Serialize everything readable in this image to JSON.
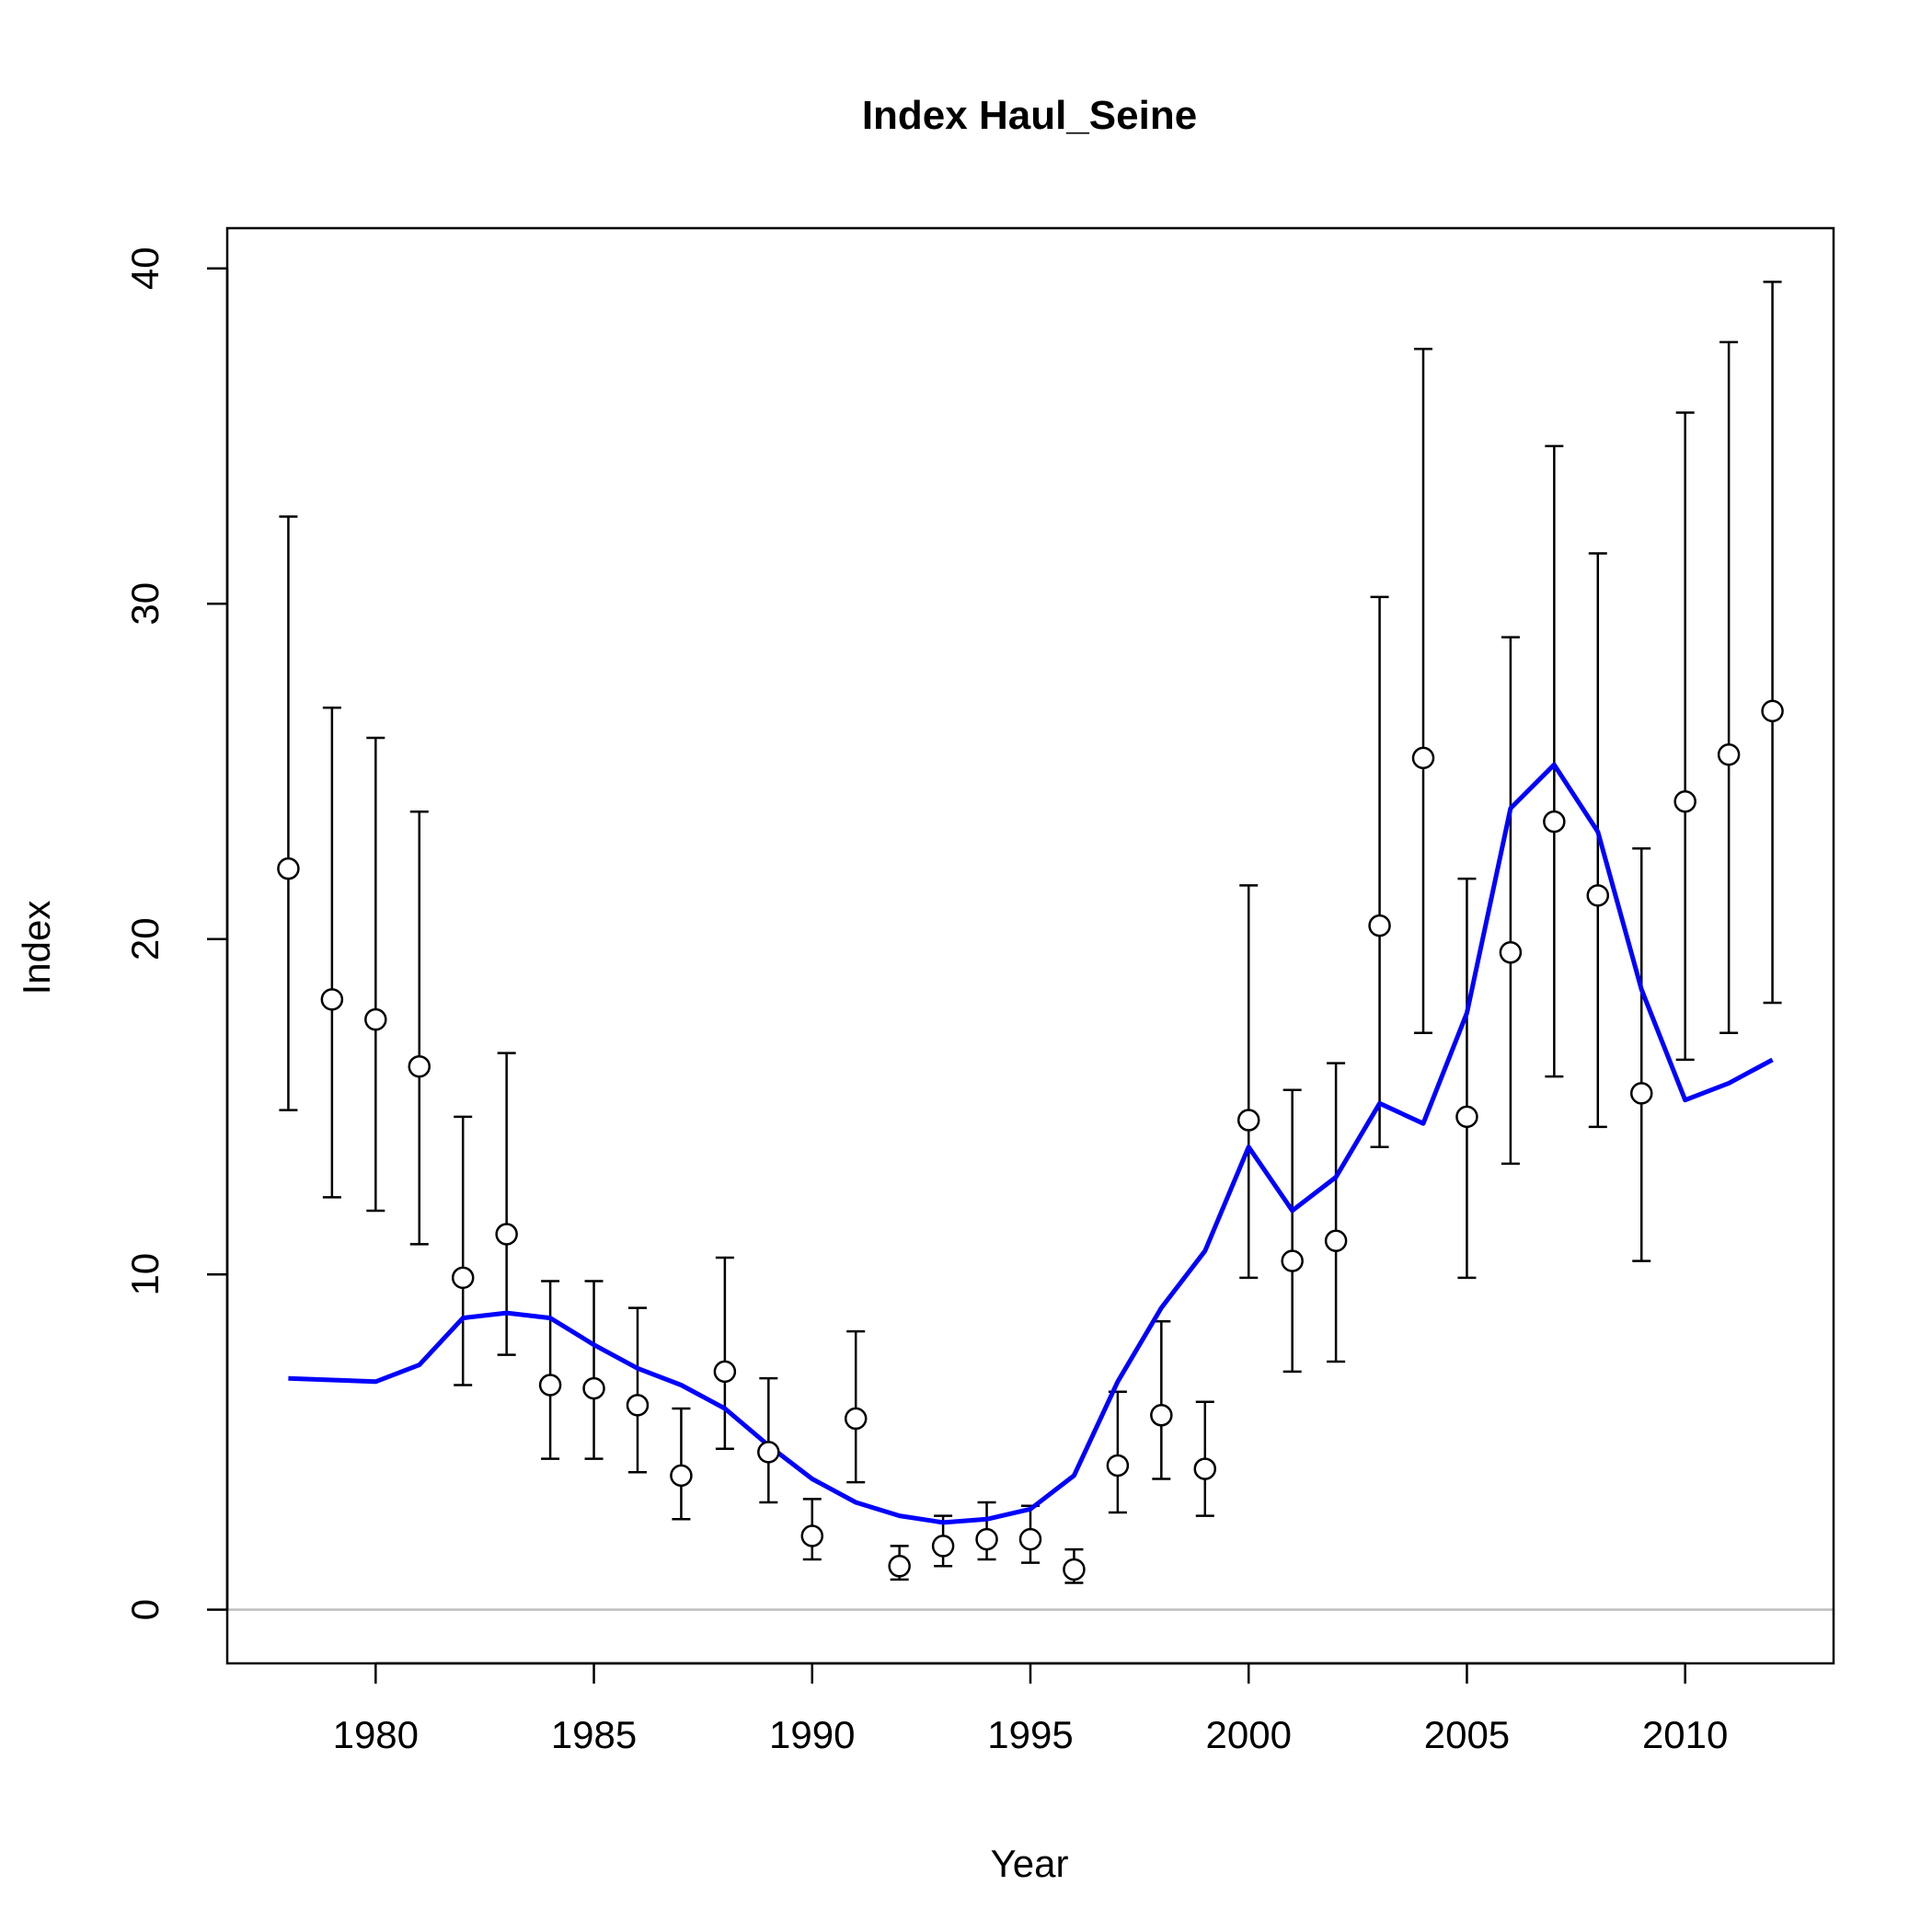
{
  "chart_data": {
    "type": "scatter",
    "title": "Index Haul_Seine",
    "xlabel": "Year",
    "ylabel": "Index",
    "xlim": [
      1976.6,
      2013.4
    ],
    "ylim": [
      -1.6,
      41.2
    ],
    "x_ticks": [
      1980,
      1985,
      1990,
      1995,
      2000,
      2005,
      2010
    ],
    "y_ticks": [
      0,
      10,
      20,
      30,
      40
    ],
    "reference_line_y": 0,
    "grid": false,
    "legend": "none",
    "colors": {
      "observed": "#000000",
      "fit": "#0000ff",
      "zero_line": "#bebebe"
    },
    "years": [
      1978,
      1979,
      1980,
      1981,
      1982,
      1983,
      1984,
      1985,
      1986,
      1987,
      1988,
      1989,
      1990,
      1991,
      1992,
      1993,
      1994,
      1995,
      1996,
      1997,
      1998,
      1999,
      2000,
      2001,
      2002,
      2003,
      2004,
      2005,
      2006,
      2007,
      2008,
      2009,
      2010,
      2011,
      2012
    ],
    "series": [
      {
        "kind": "observed",
        "values": [
          22.1,
          18.2,
          17.6,
          16.2,
          9.9,
          11.2,
          6.7,
          6.6,
          6.1,
          4.0,
          7.1,
          4.7,
          2.2,
          5.7,
          1.3,
          1.9,
          2.1,
          2.1,
          1.2,
          4.3,
          5.8,
          4.2,
          14.6,
          10.4,
          11.0,
          20.4,
          25.4,
          14.7,
          19.6,
          23.5,
          21.3,
          15.4,
          24.1,
          25.5,
          26.8
        ],
        "lower": [
          14.9,
          12.3,
          11.9,
          10.9,
          6.7,
          7.6,
          4.5,
          4.5,
          4.1,
          2.7,
          4.8,
          3.2,
          1.5,
          3.8,
          0.9,
          1.3,
          1.5,
          1.4,
          0.8,
          2.9,
          3.9,
          2.8,
          9.9,
          7.1,
          7.4,
          13.8,
          17.2,
          9.9,
          13.3,
          15.9,
          14.4,
          10.4,
          16.4,
          17.2,
          18.1
        ],
        "upper": [
          32.6,
          26.9,
          26.0,
          23.8,
          14.7,
          16.6,
          9.8,
          9.8,
          9.0,
          6.0,
          10.5,
          6.9,
          3.3,
          8.3,
          1.9,
          2.8,
          3.2,
          3.1,
          1.8,
          6.5,
          8.6,
          6.2,
          21.6,
          15.5,
          16.3,
          30.2,
          37.6,
          21.8,
          29.0,
          34.7,
          31.5,
          22.7,
          35.7,
          37.8,
          39.6
        ]
      },
      {
        "kind": "fit",
        "values": [
          6.9,
          6.85,
          6.8,
          7.3,
          8.7,
          8.85,
          8.7,
          7.9,
          7.2,
          6.7,
          6.0,
          4.9,
          3.9,
          3.2,
          2.8,
          2.6,
          2.7,
          3.0,
          4.0,
          6.8,
          9.0,
          10.7,
          13.8,
          11.9,
          12.9,
          15.1,
          14.5,
          17.8,
          23.9,
          25.2,
          23.2,
          18.5,
          15.2,
          15.7,
          16.4
        ]
      }
    ]
  }
}
